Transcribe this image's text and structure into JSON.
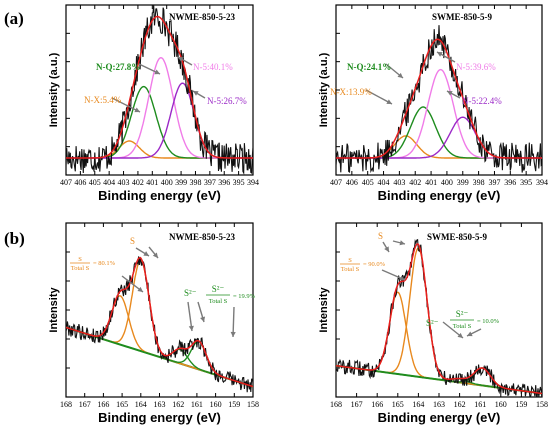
{
  "panels": {
    "a": {
      "label": "(a)"
    },
    "b": {
      "label": "(b)"
    }
  },
  "chart_data": [
    {
      "type": "line",
      "panel": "(a)",
      "title": "NWME-850-5-23",
      "xlabel": "Binding energy (eV)",
      "ylabel": "Intensity (a.u.)",
      "xlim": [
        407,
        394
      ],
      "x_reversed": true,
      "ylim": [
        0,
        1
      ],
      "x_ticks": [
        407,
        406,
        405,
        404,
        403,
        402,
        401,
        400,
        399,
        398,
        397,
        396,
        395,
        394
      ],
      "y_tick_count": 5,
      "baseline": 0.1,
      "series": [
        {
          "name": "N-X:5.4%",
          "color": "#e8891e",
          "center": 402.6,
          "height": 0.1,
          "sigma": 0.7
        },
        {
          "name": "N-Q:27.8%",
          "color": "#1e8c1e",
          "center": 401.6,
          "height": 0.42,
          "sigma": 0.85
        },
        {
          "name": "N-5:40.1%",
          "color": "#f07ce8",
          "center": 400.4,
          "height": 0.59,
          "sigma": 0.85
        },
        {
          "name": "N-5:26.7%",
          "color": "#9b29c7",
          "center": 398.9,
          "height": 0.44,
          "sigma": 0.8
        }
      ],
      "labels": [
        {
          "text": "N-Q:27.8%",
          "color": "#1e8c1e"
        },
        {
          "text": "N-5:40.1%",
          "color": "#f07ce8"
        },
        {
          "text": "N-X:5.4%",
          "color": "#e8891e"
        },
        {
          "text": "N-5:26.7%",
          "color": "#9b29c7"
        }
      ]
    },
    {
      "type": "line",
      "panel": "(a)",
      "title": "SWME-850-5-9",
      "xlabel": "Binding energy (eV)",
      "ylabel": "Intensity (a.u.)",
      "xlim": [
        407,
        394
      ],
      "x_reversed": true,
      "ylim": [
        0,
        1
      ],
      "x_ticks": [
        407,
        406,
        405,
        404,
        403,
        402,
        401,
        400,
        399,
        398,
        397,
        396,
        395,
        394
      ],
      "y_tick_count": 5,
      "baseline": 0.1,
      "series": [
        {
          "name": "N-X:13.9%",
          "color": "#e8891e",
          "center": 402.6,
          "height": 0.13,
          "sigma": 0.7
        },
        {
          "name": "N-Q:24.1%",
          "color": "#1e8c1e",
          "center": 401.5,
          "height": 0.3,
          "sigma": 0.8
        },
        {
          "name": "N-5:39.6%",
          "color": "#f07ce8",
          "center": 400.4,
          "height": 0.52,
          "sigma": 0.8
        },
        {
          "name": "N-5:22.4%",
          "color": "#9b29c7",
          "center": 399.0,
          "height": 0.24,
          "sigma": 0.8
        }
      ],
      "labels": [
        {
          "text": "N-Q:24.1%",
          "color": "#1e8c1e"
        },
        {
          "text": "N-5:39.6%",
          "color": "#f07ce8"
        },
        {
          "text": "N-X:13.9%",
          "color": "#e8891e"
        },
        {
          "text": "N-5:22.4%",
          "color": "#9b29c7"
        }
      ]
    },
    {
      "type": "line",
      "panel": "(b)",
      "title": "NWME-850-5-23",
      "xlabel": "Binding energy (eV)",
      "ylabel": "Intensity",
      "xlim": [
        168,
        158
      ],
      "x_reversed": true,
      "ylim": [
        0,
        1
      ],
      "x_ticks": [
        168,
        167,
        166,
        165,
        164,
        163,
        162,
        161,
        160,
        159,
        158
      ],
      "y_tick_count": 5,
      "baseline_line": [
        0.4,
        0.06
      ],
      "series": [
        {
          "name": "S",
          "color": "#e8891e",
          "center": 165.1,
          "height": 0.28,
          "sigma": 0.45
        },
        {
          "name": "S",
          "color": "#e8891e",
          "center": 164.0,
          "height": 0.52,
          "sigma": 0.45
        },
        {
          "name": "S2-",
          "color": "#1e8c1e",
          "center": 161.9,
          "height": 0.08,
          "sigma": 0.4
        },
        {
          "name": "S2-",
          "color": "#1e8c1e",
          "center": 160.9,
          "height": 0.16,
          "sigma": 0.4
        }
      ],
      "annotations": {
        "s_ratio": {
          "num": "S",
          "den": "Total S",
          "value": "= 80.1%",
          "color": "#e8891e"
        },
        "s_label": "S",
        "s2_label": "S²⁻",
        "s2_ratio": {
          "num": "S²⁻",
          "den": "Total S",
          "value": "= 19.9%",
          "color": "#1e8c1e"
        }
      }
    },
    {
      "type": "line",
      "panel": "(b)",
      "title": "SWME-850-5-9",
      "xlabel": "Binding energy (eV)",
      "ylabel": "Intensity",
      "xlim": [
        168,
        158
      ],
      "x_reversed": true,
      "ylim": [
        0,
        1
      ],
      "x_ticks": [
        168,
        167,
        166,
        165,
        164,
        163,
        162,
        161,
        160,
        159,
        158
      ],
      "y_tick_count": 5,
      "baseline_line": [
        0.18,
        0.02
      ],
      "series": [
        {
          "name": "S",
          "color": "#e8891e",
          "center": 165.0,
          "height": 0.47,
          "sigma": 0.4
        },
        {
          "name": "S",
          "color": "#e8891e",
          "center": 164.0,
          "height": 0.74,
          "sigma": 0.42
        },
        {
          "name": "S2-",
          "color": "#1e8c1e",
          "center": 162.0,
          "height": 0.02,
          "sigma": 0.4
        },
        {
          "name": "S2-",
          "color": "#1e8c1e",
          "center": 160.9,
          "height": 0.1,
          "sigma": 0.4
        }
      ],
      "annotations": {
        "s_ratio": {
          "num": "S",
          "den": "Total S",
          "value": "= 90.0%",
          "color": "#e8891e"
        },
        "s_label": "S",
        "s2_label": "S²⁻",
        "s2_ratio": {
          "num": "S²⁻",
          "den": "Total S",
          "value": "= 10.0%",
          "color": "#1e8c1e"
        }
      }
    }
  ]
}
